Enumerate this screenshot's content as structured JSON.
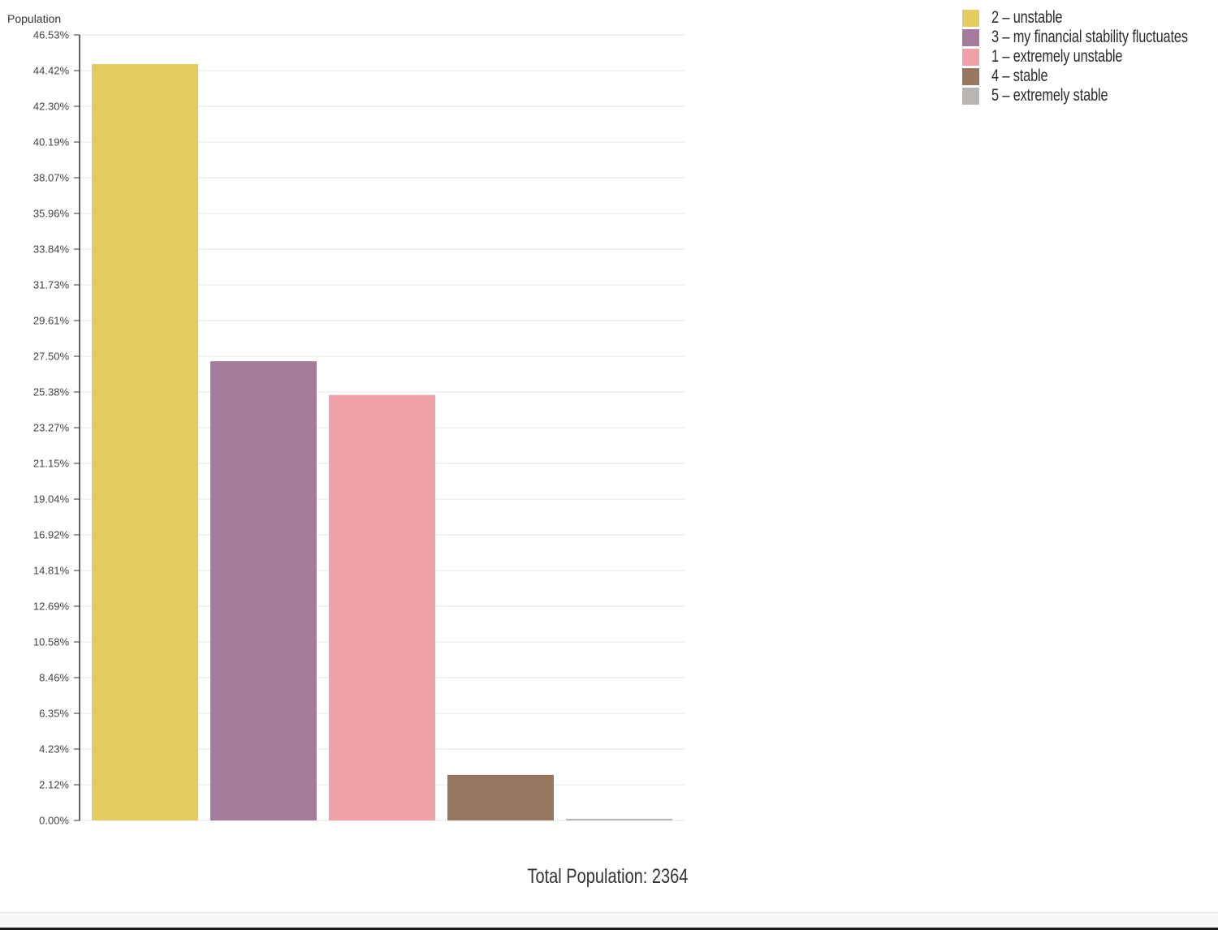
{
  "chart_data": {
    "type": "bar",
    "ylabel": "Population",
    "y_ticks": [
      "0.00%",
      "2.12%",
      "4.23%",
      "6.35%",
      "8.46%",
      "10.58%",
      "12.69%",
      "14.81%",
      "16.92%",
      "19.04%",
      "21.15%",
      "23.27%",
      "25.38%",
      "27.50%",
      "29.61%",
      "31.73%",
      "33.84%",
      "35.96%",
      "38.07%",
      "40.19%",
      "42.30%",
      "44.42%",
      "46.53%"
    ],
    "ylim": [
      0,
      46.53
    ],
    "grid": true,
    "legend_position": "top-right",
    "categories": [
      "2 – unstable",
      "3 – my financial stability fluctuates",
      "1 – extremely unstable",
      "4 – stable",
      "5 – extremely stable"
    ],
    "values": [
      44.8,
      27.2,
      25.2,
      2.7,
      0.1
    ],
    "colors": [
      "#E5CB5F",
      "#A67C9D",
      "#F0A0A7",
      "#977760",
      "#B9B5B2"
    ]
  },
  "total_population": "Total Population: 2364"
}
